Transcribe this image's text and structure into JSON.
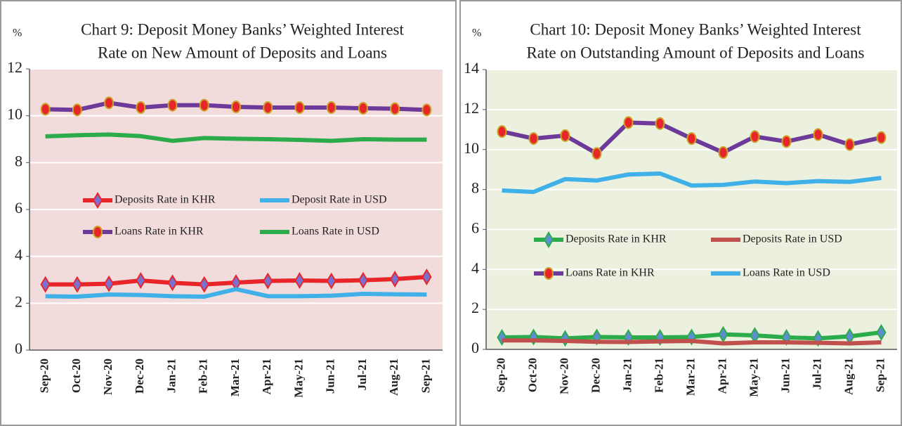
{
  "chart_data": [
    {
      "type": "line",
      "title": [
        "Chart 9: Deposit Money Banks’ Weighted Interest",
        "Rate on New Amount of Deposits and Loans"
      ],
      "y_label": "%",
      "background": "#f2dcdb",
      "categories": [
        "Sep-20",
        "Oct-20",
        "Nov-20",
        "Dec-20",
        "Jan-21",
        "Feb-21",
        "Mar-21",
        "Apr-21",
        "May-21",
        "Jun-21",
        "Jul-21",
        "Aug-21",
        "Sep-21"
      ],
      "ylim": [
        0,
        12
      ],
      "yticks": [
        0,
        2,
        4,
        6,
        8,
        10,
        12
      ],
      "grid": true,
      "series": [
        {
          "name": "Deposits Rate in KHR",
          "color": "#e8262a",
          "marker": "diamond",
          "marker_color": "#7b6fd0",
          "values": [
            2.8,
            2.8,
            2.83,
            2.97,
            2.87,
            2.8,
            2.88,
            2.95,
            2.97,
            2.95,
            2.98,
            3.03,
            3.12
          ]
        },
        {
          "name": "Deposit Rate in USD",
          "color": "#3fb0e8",
          "values": [
            2.3,
            2.28,
            2.37,
            2.35,
            2.3,
            2.28,
            2.6,
            2.3,
            2.3,
            2.32,
            2.4,
            2.38,
            2.37
          ]
        },
        {
          "name": "Loans Rate in KHR",
          "color": "#6e3a9a",
          "marker": "circle",
          "marker_color": "#e8262a",
          "values": [
            10.28,
            10.25,
            10.55,
            10.35,
            10.45,
            10.45,
            10.38,
            10.35,
            10.35,
            10.35,
            10.32,
            10.3,
            10.25
          ]
        },
        {
          "name": "Loans Rate in USD",
          "color": "#2bab4a",
          "values": [
            9.12,
            9.17,
            9.2,
            9.13,
            8.93,
            9.05,
            9.02,
            9.0,
            8.97,
            8.93,
            9.0,
            8.98,
            8.98
          ]
        }
      ]
    },
    {
      "type": "line",
      "title": [
        "Chart 10: Deposit Money Banks’ Weighted Interest",
        "Rate on Outstanding Amount of Deposits and Loans"
      ],
      "y_label": "%",
      "background": "#ebf1de",
      "categories": [
        "Sep-20",
        "Oct-20",
        "Nov-20",
        "Dec-20",
        "Jan-21",
        "Feb-21",
        "Mar-21",
        "Apr-21",
        "May-21",
        "Jun-21",
        "Jul-21",
        "Aug-21",
        "Sep-21"
      ],
      "ylim": [
        0,
        14
      ],
      "yticks": [
        0,
        2,
        4,
        6,
        8,
        10,
        12,
        14
      ],
      "grid": true,
      "series": [
        {
          "name": "Deposits Rate in KHR",
          "color": "#2bab4a",
          "marker": "diamond",
          "marker_color": "#5b8fd0",
          "values": [
            0.6,
            0.62,
            0.55,
            0.62,
            0.6,
            0.6,
            0.62,
            0.75,
            0.7,
            0.6,
            0.55,
            0.65,
            0.85
          ]
        },
        {
          "name": "Deposits Rate in USD",
          "color": "#c0504d",
          "values": [
            0.45,
            0.45,
            0.42,
            0.38,
            0.37,
            0.4,
            0.42,
            0.3,
            0.35,
            0.35,
            0.33,
            0.3,
            0.35
          ]
        },
        {
          "name": "Loans Rate in KHR",
          "color": "#6e3a9a",
          "marker": "circle",
          "marker_color": "#e8262a",
          "values": [
            10.9,
            10.55,
            10.7,
            9.8,
            11.35,
            11.3,
            10.55,
            9.85,
            10.65,
            10.4,
            10.75,
            10.25,
            10.6
          ]
        },
        {
          "name": "Loans Rate in USD",
          "color": "#3fb0e8",
          "values": [
            7.95,
            7.88,
            8.52,
            8.45,
            8.75,
            8.8,
            8.2,
            8.23,
            8.4,
            8.32,
            8.42,
            8.38,
            8.58
          ]
        }
      ]
    }
  ]
}
